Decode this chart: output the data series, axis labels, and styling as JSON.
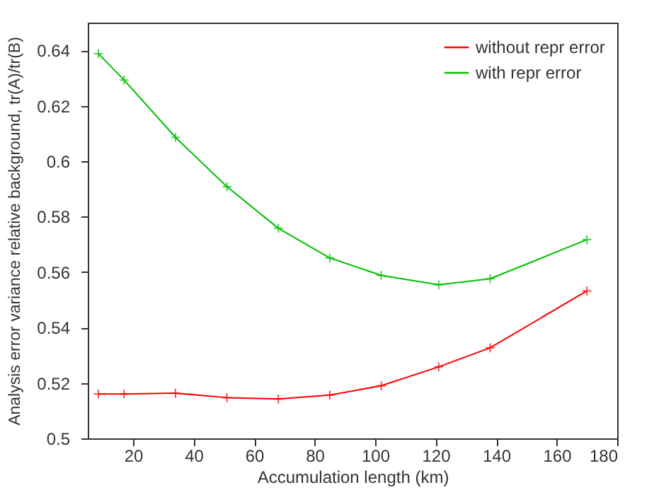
{
  "chart_data": {
    "type": "line",
    "xlabel": "Accumulation length (km)",
    "ylabel": "Analysis error variance relative background, tr(A)/tr(B)",
    "x": [
      8.5,
      17,
      34,
      51,
      68,
      85,
      102,
      121,
      138,
      170
    ],
    "series": [
      {
        "name": "without repr error",
        "color": "#ff0000",
        "marker": "cross",
        "values": [
          0.516,
          0.516,
          0.5163,
          0.5147,
          0.5142,
          0.5156,
          0.519,
          0.5258,
          0.5327,
          0.5532
        ]
      },
      {
        "name": "with repr error",
        "color": "#00c000",
        "marker": "cross",
        "values": [
          0.6388,
          0.6293,
          0.6086,
          0.5908,
          0.5758,
          0.5651,
          0.5588,
          0.5554,
          0.5576,
          0.5717
        ]
      }
    ],
    "xlim": [
      5,
      180
    ],
    "xticks": [
      20,
      40,
      60,
      80,
      100,
      120,
      140,
      160,
      180
    ],
    "ylim": [
      0.5,
      0.65
    ],
    "yticks": [
      0.5,
      0.52,
      0.54,
      0.56,
      0.58,
      0.6,
      0.62,
      0.64
    ],
    "legend": "top right",
    "grid": false,
    "line_style": "solid"
  }
}
